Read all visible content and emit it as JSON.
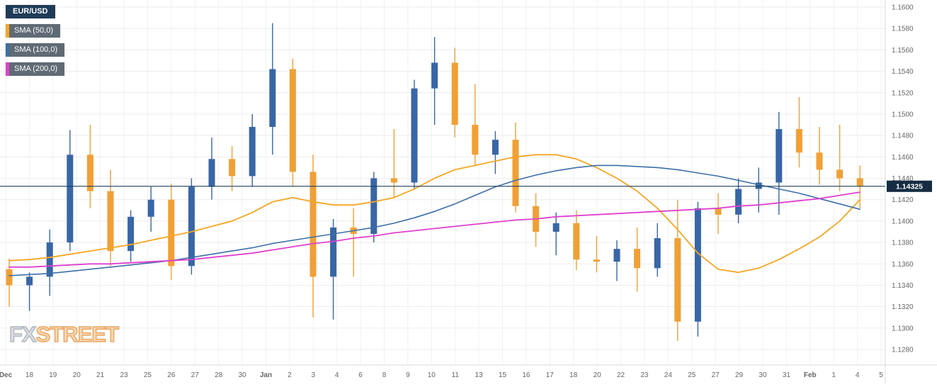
{
  "legend": {
    "items": [
      {
        "label": "EUR/USD",
        "type": "symbol",
        "color": "#1e3c58"
      },
      {
        "label": "SMA (50,0)",
        "type": "overlay",
        "color": "#f5a623"
      },
      {
        "label": "SMA (100,0)",
        "type": "overlay",
        "color": "#3d6fa8"
      },
      {
        "label": "SMA (200,0)",
        "type": "overlay",
        "color": "#e040d0"
      }
    ]
  },
  "watermark": {
    "fx": "FX",
    "street": "STREET"
  },
  "chart_data": {
    "type": "candlestick",
    "symbol": "EUR/USD",
    "timeframe": "daily",
    "last_price": 1.14325,
    "last_price_label": "1.14325",
    "grid": true,
    "legend_position": "top-left",
    "y_axis": {
      "min": 1.128,
      "max": 1.16,
      "ticks": [
        1.16,
        1.158,
        1.156,
        1.154,
        1.152,
        1.15,
        1.148,
        1.146,
        1.144,
        1.142,
        1.14,
        1.138,
        1.136,
        1.134,
        1.132,
        1.13,
        1.128
      ]
    },
    "x_axis": {
      "labels": [
        "Dec",
        "18",
        "19",
        "20",
        "21",
        "23",
        "25",
        "26",
        "27",
        "28",
        "30",
        "Jan",
        "2",
        "3",
        "4",
        "6",
        "8",
        "9",
        "10",
        "11",
        "13",
        "15",
        "16",
        "17",
        "18",
        "20",
        "22",
        "23",
        "24",
        "25",
        "27",
        "29",
        "30",
        "31",
        "Feb",
        "1",
        "4",
        "5"
      ]
    },
    "candles": [
      {
        "d": "Dec 17",
        "o": 1.1355,
        "h": 1.1365,
        "l": 1.132,
        "c": 1.134
      },
      {
        "d": "Dec 18",
        "o": 1.134,
        "h": 1.1352,
        "l": 1.1316,
        "c": 1.1348
      },
      {
        "d": "Dec 19",
        "o": 1.1348,
        "h": 1.1392,
        "l": 1.133,
        "c": 1.138
      },
      {
        "d": "Dec 20",
        "o": 1.138,
        "h": 1.1485,
        "l": 1.1372,
        "c": 1.1462
      },
      {
        "d": "Dec 21",
        "o": 1.1462,
        "h": 1.149,
        "l": 1.1412,
        "c": 1.1428
      },
      {
        "d": "Dec 23",
        "o": 1.1428,
        "h": 1.1448,
        "l": 1.1358,
        "c": 1.1372
      },
      {
        "d": "Dec 24",
        "o": 1.1372,
        "h": 1.141,
        "l": 1.1362,
        "c": 1.1404
      },
      {
        "d": "Dec 25",
        "o": 1.1404,
        "h": 1.1432,
        "l": 1.139,
        "c": 1.142
      },
      {
        "d": "Dec 26",
        "o": 1.142,
        "h": 1.1435,
        "l": 1.1345,
        "c": 1.1358
      },
      {
        "d": "Dec 27",
        "o": 1.1358,
        "h": 1.144,
        "l": 1.135,
        "c": 1.1432
      },
      {
        "d": "Dec 28",
        "o": 1.1432,
        "h": 1.1478,
        "l": 1.142,
        "c": 1.1458
      },
      {
        "d": "Dec 30",
        "o": 1.1458,
        "h": 1.147,
        "l": 1.1428,
        "c": 1.1442
      },
      {
        "d": "Dec 31",
        "o": 1.1442,
        "h": 1.15,
        "l": 1.1432,
        "c": 1.1488
      },
      {
        "d": "Jan 1",
        "o": 1.1488,
        "h": 1.1585,
        "l": 1.1462,
        "c": 1.1542
      },
      {
        "d": "Jan 2",
        "o": 1.1542,
        "h": 1.1552,
        "l": 1.1432,
        "c": 1.1446
      },
      {
        "d": "Jan 3",
        "o": 1.1446,
        "h": 1.1462,
        "l": 1.131,
        "c": 1.1348
      },
      {
        "d": "Jan 4",
        "o": 1.1348,
        "h": 1.1402,
        "l": 1.1308,
        "c": 1.1394
      },
      {
        "d": "Jan 6",
        "o": 1.1394,
        "h": 1.1412,
        "l": 1.1348,
        "c": 1.1388
      },
      {
        "d": "Jan 7",
        "o": 1.1388,
        "h": 1.1446,
        "l": 1.138,
        "c": 1.144
      },
      {
        "d": "Jan 8",
        "o": 1.144,
        "h": 1.1486,
        "l": 1.1422,
        "c": 1.1436
      },
      {
        "d": "Jan 9",
        "o": 1.1436,
        "h": 1.1532,
        "l": 1.143,
        "c": 1.1524
      },
      {
        "d": "Jan 10",
        "o": 1.1524,
        "h": 1.1572,
        "l": 1.149,
        "c": 1.1548
      },
      {
        "d": "Jan 11",
        "o": 1.1548,
        "h": 1.1562,
        "l": 1.1478,
        "c": 1.149
      },
      {
        "d": "Jan 13",
        "o": 1.149,
        "h": 1.1528,
        "l": 1.1452,
        "c": 1.1462
      },
      {
        "d": "Jan 14",
        "o": 1.1462,
        "h": 1.1484,
        "l": 1.1444,
        "c": 1.1476
      },
      {
        "d": "Jan 15",
        "o": 1.1476,
        "h": 1.1492,
        "l": 1.1408,
        "c": 1.1414
      },
      {
        "d": "Jan 16",
        "o": 1.1414,
        "h": 1.1426,
        "l": 1.1376,
        "c": 1.139
      },
      {
        "d": "Jan 17",
        "o": 1.139,
        "h": 1.1408,
        "l": 1.1368,
        "c": 1.1398
      },
      {
        "d": "Jan 18",
        "o": 1.1398,
        "h": 1.141,
        "l": 1.1354,
        "c": 1.1364
      },
      {
        "d": "Jan 20",
        "o": 1.1364,
        "h": 1.1386,
        "l": 1.1352,
        "c": 1.1362
      },
      {
        "d": "Jan 21",
        "o": 1.1362,
        "h": 1.1382,
        "l": 1.1344,
        "c": 1.1374
      },
      {
        "d": "Jan 22",
        "o": 1.1374,
        "h": 1.1394,
        "l": 1.1334,
        "c": 1.1356
      },
      {
        "d": "Jan 23",
        "o": 1.1356,
        "h": 1.1398,
        "l": 1.1348,
        "c": 1.1384
      },
      {
        "d": "Jan 24",
        "o": 1.1384,
        "h": 1.142,
        "l": 1.1288,
        "c": 1.1306
      },
      {
        "d": "Jan 25",
        "o": 1.1306,
        "h": 1.1418,
        "l": 1.1292,
        "c": 1.1412
      },
      {
        "d": "Jan 27",
        "o": 1.1412,
        "h": 1.1426,
        "l": 1.1388,
        "c": 1.1406
      },
      {
        "d": "Jan 28",
        "o": 1.1406,
        "h": 1.144,
        "l": 1.1398,
        "c": 1.143
      },
      {
        "d": "Jan 29",
        "o": 1.143,
        "h": 1.145,
        "l": 1.1408,
        "c": 1.1436
      },
      {
        "d": "Jan 30",
        "o": 1.1436,
        "h": 1.1502,
        "l": 1.1406,
        "c": 1.1486
      },
      {
        "d": "Jan 31",
        "o": 1.1486,
        "h": 1.1516,
        "l": 1.145,
        "c": 1.1464
      },
      {
        "d": "Feb 1",
        "o": 1.1464,
        "h": 1.1488,
        "l": 1.1434,
        "c": 1.1448
      },
      {
        "d": "Feb 3",
        "o": 1.1448,
        "h": 1.149,
        "l": 1.1428,
        "c": 1.144
      },
      {
        "d": "Feb 4",
        "o": 1.144,
        "h": 1.1452,
        "l": 1.1412,
        "c": 1.14325
      }
    ],
    "overlays": [
      {
        "name": "SMA (50,0)",
        "color": "#f5a623",
        "width": 1.8,
        "values": [
          1.1363,
          1.1364,
          1.1366,
          1.1369,
          1.1372,
          1.1375,
          1.1378,
          1.1382,
          1.1386,
          1.139,
          1.1395,
          1.14,
          1.1408,
          1.1418,
          1.1422,
          1.1418,
          1.1415,
          1.1415,
          1.1418,
          1.1422,
          1.143,
          1.144,
          1.1448,
          1.1452,
          1.1456,
          1.146,
          1.1462,
          1.1462,
          1.1458,
          1.145,
          1.144,
          1.1428,
          1.1412,
          1.1392,
          1.137,
          1.1355,
          1.1352,
          1.1356,
          1.1364,
          1.1374,
          1.1385,
          1.14,
          1.142
        ]
      },
      {
        "name": "SMA (100,0)",
        "color": "#3d6fa8",
        "width": 1.6,
        "values": [
          1.1349,
          1.135,
          1.1351,
          1.1353,
          1.1355,
          1.1357,
          1.1359,
          1.1361,
          1.1363,
          1.1366,
          1.1369,
          1.1372,
          1.1375,
          1.1379,
          1.1382,
          1.1385,
          1.1388,
          1.1391,
          1.1394,
          1.1398,
          1.1403,
          1.1409,
          1.1416,
          1.1424,
          1.1432,
          1.1438,
          1.1443,
          1.1447,
          1.145,
          1.1452,
          1.1452,
          1.1451,
          1.145,
          1.1448,
          1.1445,
          1.1442,
          1.1438,
          1.1434,
          1.143,
          1.1426,
          1.1421,
          1.1416,
          1.1411
        ]
      },
      {
        "name": "SMA (200,0)",
        "color": "#e040d0",
        "width": 1.8,
        "values": [
          1.1357,
          1.1357,
          1.1358,
          1.1359,
          1.136,
          1.136,
          1.1361,
          1.1362,
          1.1363,
          1.1364,
          1.1366,
          1.1368,
          1.137,
          1.1373,
          1.1376,
          1.1379,
          1.1381,
          1.1384,
          1.1386,
          1.1389,
          1.1391,
          1.1393,
          1.1395,
          1.1397,
          1.1399,
          1.1401,
          1.1402,
          1.1404,
          1.1405,
          1.1406,
          1.1407,
          1.1408,
          1.1409,
          1.141,
          1.1411,
          1.1412,
          1.1414,
          1.1415,
          1.1417,
          1.1419,
          1.1421,
          1.1424,
          1.1427
        ]
      }
    ],
    "colors": {
      "up": "#3866a6",
      "down": "#f0a035",
      "price_line": "#1d3e5e",
      "price_badge_bg": "#152c42",
      "price_badge_text": "#ffffff",
      "grid": "#ececec",
      "axis_text": "#666666",
      "axis_border": "#d8d8d8"
    }
  }
}
